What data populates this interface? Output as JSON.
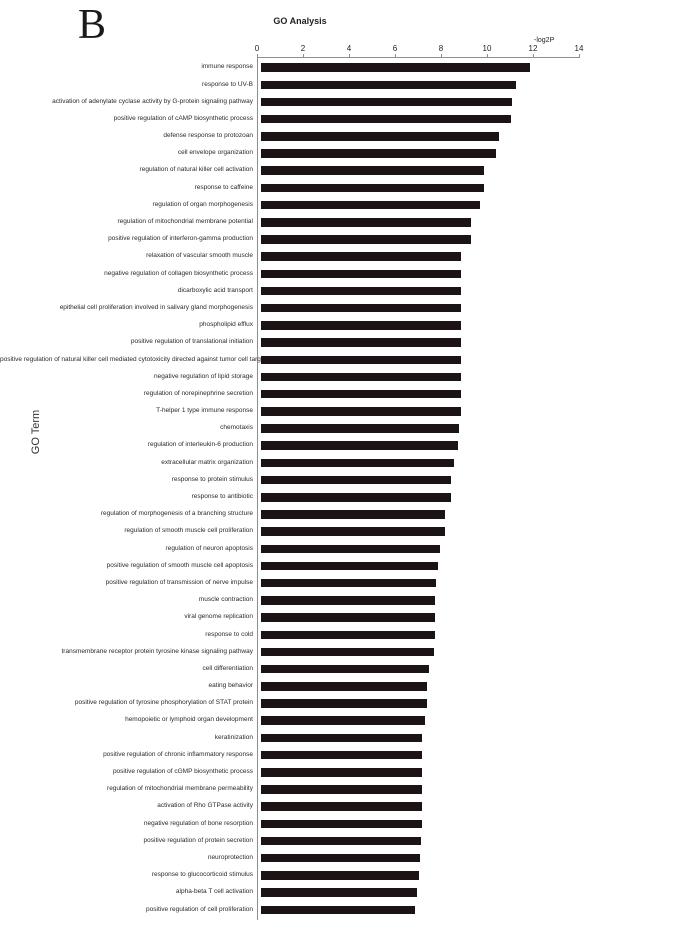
{
  "panel_label": "B",
  "chart_data": {
    "type": "bar",
    "orientation": "horizontal",
    "title": "GO Analysis",
    "xlabel": "-log2P",
    "ylabel": "GO Term",
    "xlim": [
      0,
      14
    ],
    "xticks": [
      0,
      2,
      4,
      6,
      8,
      10,
      12,
      14
    ],
    "grid": false,
    "legend": "none",
    "bar_color": "#1c1414",
    "categories": [
      "immune response",
      "response to UV-B",
      "activation of adenylate cyclase activity by G-protein signaling pathway",
      "positive regulation of cAMP biosynthetic process",
      "defense response to protozoan",
      "cell envelope organization",
      "regulation of natural killer cell activation",
      "response to caffeine",
      "regulation of organ morphogenesis",
      "regulation of mitochondrial membrane potential",
      "positive regulation of interferon-gamma production",
      "relaxation of vascular smooth muscle",
      "negative regulation of collagen biosynthetic process",
      "dicarboxylic acid transport",
      "epithelial cell proliferation involved in salivary gland morphogenesis",
      "phospholipid efflux",
      "positive regulation of translational initiation",
      "positive regulation of natural killer cell mediated cytotoxicity directed against tumor cell target",
      "negative regulation of lipid storage",
      "regulation of norepinephrine secretion",
      "T-helper 1 type immune response",
      "chemotaxis",
      "regulation of interleukin-6 production",
      "extracellular matrix organization",
      "response to protein stimulus",
      "response to antibiotic",
      "regulation of morphogenesis of a branching structure",
      "regulation of smooth muscle cell proliferation",
      "regulation of neuron apoptosis",
      "positive regulation of smooth muscle cell apoptosis",
      "positive regulation of transmission of nerve impulse",
      "muscle contraction",
      "viral genome replication",
      "response to cold",
      "transmembrane receptor protein tyrosine kinase signaling pathway",
      "cell differentiation",
      "eating behavior",
      "positive regulation of tyrosine phosphorylation of STAT protein",
      "hemopoietic or lymphoid organ development",
      "keratinization",
      "positive regulation of chronic inflammatory response",
      "positive regulation of cGMP biosynthetic process",
      "regulation of mitochondrial membrane permeability",
      "activation of Rho GTPase activity",
      "negative regulation of bone resorption",
      "positive regulation of protein secretion",
      "neuroprotection",
      "response to glucocorticoid stimulus",
      "alpha-beta T cell activation",
      "positive regulation of cell proliferation"
    ],
    "values": [
      11.7,
      11.1,
      10.9,
      10.85,
      10.35,
      10.2,
      9.7,
      9.7,
      9.5,
      9.15,
      9.15,
      8.7,
      8.7,
      8.7,
      8.7,
      8.7,
      8.7,
      8.7,
      8.7,
      8.7,
      8.7,
      8.6,
      8.55,
      8.4,
      8.25,
      8.25,
      8.0,
      8.0,
      7.8,
      7.7,
      7.6,
      7.55,
      7.55,
      7.55,
      7.5,
      7.3,
      7.2,
      7.2,
      7.15,
      7.0,
      7.0,
      7.0,
      7.0,
      7.0,
      7.0,
      6.95,
      6.9,
      6.85,
      6.8,
      6.7
    ]
  }
}
